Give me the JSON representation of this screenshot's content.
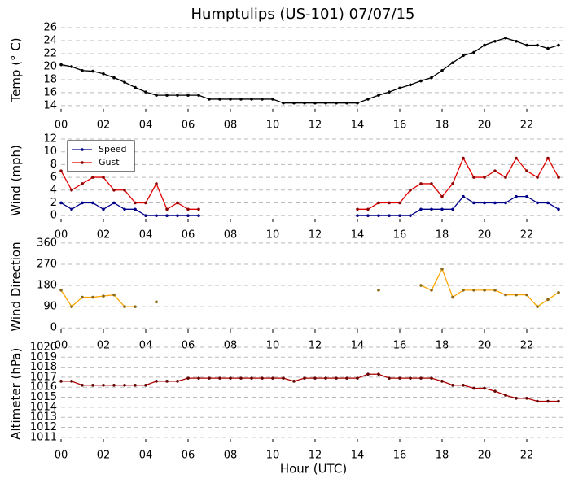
{
  "chart_data": [
    {
      "type": "line",
      "title": "Humptulips (US-101) 07/07/15",
      "ylabel": "Temp (° C)",
      "x": [
        0,
        0.5,
        1,
        1.5,
        2,
        2.5,
        3,
        3.5,
        4,
        4.5,
        5,
        5.5,
        6,
        6.5,
        7,
        7.5,
        8,
        8.5,
        9,
        9.5,
        10,
        10.5,
        11,
        11.5,
        12,
        12.5,
        13,
        13.5,
        14,
        14.5,
        15,
        15.5,
        16,
        16.5,
        17,
        17.5,
        18,
        18.5,
        19,
        19.5,
        20,
        20.5,
        21,
        21.5,
        22,
        22.5,
        23,
        23.5
      ],
      "series": [
        {
          "name": "Temp",
          "color": "#000000",
          "marker": "#000000",
          "values": [
            20.3,
            20,
            19.4,
            19.3,
            18.9,
            18.3,
            17.6,
            16.8,
            16.1,
            15.6,
            15.6,
            15.6,
            15.6,
            15.6,
            15,
            15,
            15,
            15,
            15,
            15,
            15,
            14.4,
            14.4,
            14.4,
            14.4,
            14.4,
            14.4,
            14.4,
            14.4,
            15,
            15.6,
            16.1,
            16.7,
            17.2,
            17.8,
            18.3,
            19.4,
            20.6,
            21.7,
            22.2,
            23.3,
            23.9,
            24.4,
            23.9,
            23.3,
            23.3,
            22.8,
            23.3
          ]
        }
      ],
      "xlim": [
        0,
        24
      ],
      "xticks": [
        {
          "value": 0,
          "label": "00"
        },
        {
          "value": 2,
          "label": "02"
        },
        {
          "value": 4,
          "label": "04"
        },
        {
          "value": 6,
          "label": "06"
        },
        {
          "value": 8,
          "label": "08"
        },
        {
          "value": 10,
          "label": "10"
        },
        {
          "value": 12,
          "label": "12"
        },
        {
          "value": 14,
          "label": "14"
        },
        {
          "value": 16,
          "label": "16"
        },
        {
          "value": 18,
          "label": "18"
        },
        {
          "value": 20,
          "label": "20"
        },
        {
          "value": 22,
          "label": "22"
        }
      ],
      "ylim": [
        13,
        26
      ],
      "yticks": [
        14,
        16,
        18,
        20,
        22,
        24,
        26
      ],
      "grid": true
    },
    {
      "type": "line",
      "ylabel": "Wind (mph)",
      "legend": "upper left",
      "x": [
        0,
        0.5,
        1,
        1.5,
        2,
        2.5,
        3,
        3.5,
        4,
        4.5,
        5,
        5.5,
        6,
        6.5,
        7,
        7.5,
        8,
        8.5,
        9,
        9.5,
        10,
        10.5,
        11,
        11.5,
        12,
        12.5,
        13,
        13.5,
        14,
        14.5,
        15,
        15.5,
        16,
        16.5,
        17,
        17.5,
        18,
        18.5,
        19,
        19.5,
        20,
        20.5,
        21,
        21.5,
        22,
        22.5,
        23,
        23.5
      ],
      "series": [
        {
          "name": "Speed",
          "color": "#00008b",
          "marker": "#00008b",
          "values": [
            2,
            1,
            2,
            2,
            1,
            2,
            1,
            1,
            0,
            0,
            0,
            0,
            0,
            0,
            null,
            null,
            null,
            null,
            null,
            null,
            null,
            null,
            null,
            null,
            null,
            null,
            null,
            null,
            0,
            0,
            0,
            0,
            0,
            0,
            1,
            1,
            1,
            1,
            3,
            2,
            2,
            2,
            2,
            3,
            3,
            2,
            2,
            1
          ]
        },
        {
          "name": "Gust",
          "color": "#e00000",
          "marker": "#8b0000",
          "values": [
            7,
            4,
            5,
            6,
            6,
            4,
            4,
            2,
            2,
            5,
            1,
            2,
            1,
            1,
            null,
            null,
            null,
            null,
            null,
            null,
            null,
            null,
            null,
            null,
            null,
            null,
            null,
            null,
            1,
            1,
            2,
            2,
            2,
            4,
            5,
            5,
            3,
            5,
            9,
            6,
            6,
            7,
            6,
            9,
            7,
            6,
            9,
            6
          ]
        }
      ],
      "xlim": [
        0,
        24
      ],
      "xticks": [
        {
          "value": 0,
          "label": "00"
        },
        {
          "value": 2,
          "label": "02"
        },
        {
          "value": 4,
          "label": "04"
        },
        {
          "value": 6,
          "label": "06"
        },
        {
          "value": 8,
          "label": "08"
        },
        {
          "value": 10,
          "label": "10"
        },
        {
          "value": 12,
          "label": "12"
        },
        {
          "value": 14,
          "label": "14"
        },
        {
          "value": 16,
          "label": "16"
        },
        {
          "value": 18,
          "label": "18"
        },
        {
          "value": 20,
          "label": "20"
        },
        {
          "value": 22,
          "label": "22"
        }
      ],
      "ylim": [
        -1,
        12
      ],
      "yticks": [
        0,
        2,
        4,
        6,
        8,
        10,
        12
      ],
      "grid": true
    },
    {
      "type": "line",
      "ylabel": "Wind Direction",
      "x": [
        0,
        0.5,
        1,
        1.5,
        2,
        2.5,
        3,
        3.5,
        4,
        4.5,
        5,
        5.5,
        6,
        6.5,
        7,
        7.5,
        8,
        8.5,
        9,
        9.5,
        10,
        10.5,
        11,
        11.5,
        12,
        12.5,
        13,
        13.5,
        14,
        14.5,
        15,
        15.5,
        16,
        16.5,
        17,
        17.5,
        18,
        18.5,
        19,
        19.5,
        20,
        20.5,
        21,
        21.5,
        22,
        22.5,
        23,
        23.5
      ],
      "series": [
        {
          "name": "Direction",
          "color": "#ffa500",
          "marker": "#8b6914",
          "values": [
            160,
            90,
            130,
            130,
            135,
            140,
            90,
            90,
            null,
            110,
            null,
            null,
            null,
            null,
            null,
            null,
            null,
            null,
            null,
            null,
            null,
            null,
            null,
            null,
            null,
            null,
            null,
            null,
            null,
            null,
            160,
            null,
            null,
            null,
            180,
            160,
            250,
            130,
            160,
            160,
            160,
            160,
            140,
            140,
            140,
            90,
            120,
            150
          ]
        }
      ],
      "xlim": [
        0,
        24
      ],
      "xticks": [
        {
          "value": 0,
          "label": "00"
        },
        {
          "value": 2,
          "label": "02"
        },
        {
          "value": 4,
          "label": "04"
        },
        {
          "value": 6,
          "label": "06"
        },
        {
          "value": 8,
          "label": "08"
        },
        {
          "value": 10,
          "label": "10"
        },
        {
          "value": 12,
          "label": "12"
        },
        {
          "value": 14,
          "label": "14"
        },
        {
          "value": 16,
          "label": "16"
        },
        {
          "value": 18,
          "label": "18"
        },
        {
          "value": 20,
          "label": "20"
        },
        {
          "value": 22,
          "label": "22"
        }
      ],
      "ylim": [
        -20,
        370
      ],
      "yticks": [
        0,
        90,
        180,
        270,
        360
      ],
      "grid": true
    },
    {
      "type": "line",
      "ylabel": "Altimeter (hPa)",
      "xlabel": "Hour (UTC)",
      "x": [
        0,
        0.5,
        1,
        1.5,
        2,
        2.5,
        3,
        3.5,
        4,
        4.5,
        5,
        5.5,
        6,
        6.5,
        7,
        7.5,
        8,
        8.5,
        9,
        9.5,
        10,
        10.5,
        11,
        11.5,
        12,
        12.5,
        13,
        13.5,
        14,
        14.5,
        15,
        15.5,
        16,
        16.5,
        17,
        17.5,
        18,
        18.5,
        19,
        19.5,
        20,
        20.5,
        21,
        21.5,
        22,
        22.5,
        23,
        23.5
      ],
      "series": [
        {
          "name": "Altimeter",
          "color": "#b00000",
          "marker": "#600000",
          "values": [
            1016.6,
            1016.6,
            1016.2,
            1016.2,
            1016.2,
            1016.2,
            1016.2,
            1016.2,
            1016.2,
            1016.6,
            1016.6,
            1016.6,
            1016.9,
            1016.9,
            1016.9,
            1016.9,
            1016.9,
            1016.9,
            1016.9,
            1016.9,
            1016.9,
            1016.9,
            1016.6,
            1016.9,
            1016.9,
            1016.9,
            1016.9,
            1016.9,
            1016.9,
            1017.3,
            1017.3,
            1016.9,
            1016.9,
            1016.9,
            1016.9,
            1016.9,
            1016.6,
            1016.2,
            1016.2,
            1015.9,
            1015.9,
            1015.6,
            1015.2,
            1014.9,
            1014.9,
            1014.6,
            1014.6,
            1014.6
          ]
        }
      ],
      "xlim": [
        0,
        24
      ],
      "xticks": [
        {
          "value": 0,
          "label": "00"
        },
        {
          "value": 2,
          "label": "02"
        },
        {
          "value": 4,
          "label": "04"
        },
        {
          "value": 6,
          "label": "06"
        },
        {
          "value": 8,
          "label": "08"
        },
        {
          "value": 10,
          "label": "10"
        },
        {
          "value": 12,
          "label": "12"
        },
        {
          "value": 14,
          "label": "14"
        },
        {
          "value": 16,
          "label": "16"
        },
        {
          "value": 18,
          "label": "18"
        },
        {
          "value": 20,
          "label": "20"
        },
        {
          "value": 22,
          "label": "22"
        }
      ],
      "ylim": [
        1010.5,
        1020.2
      ],
      "yticks": [
        1011,
        1012,
        1013,
        1014,
        1015,
        1016,
        1017,
        1018,
        1019,
        1020
      ],
      "grid": true
    }
  ]
}
